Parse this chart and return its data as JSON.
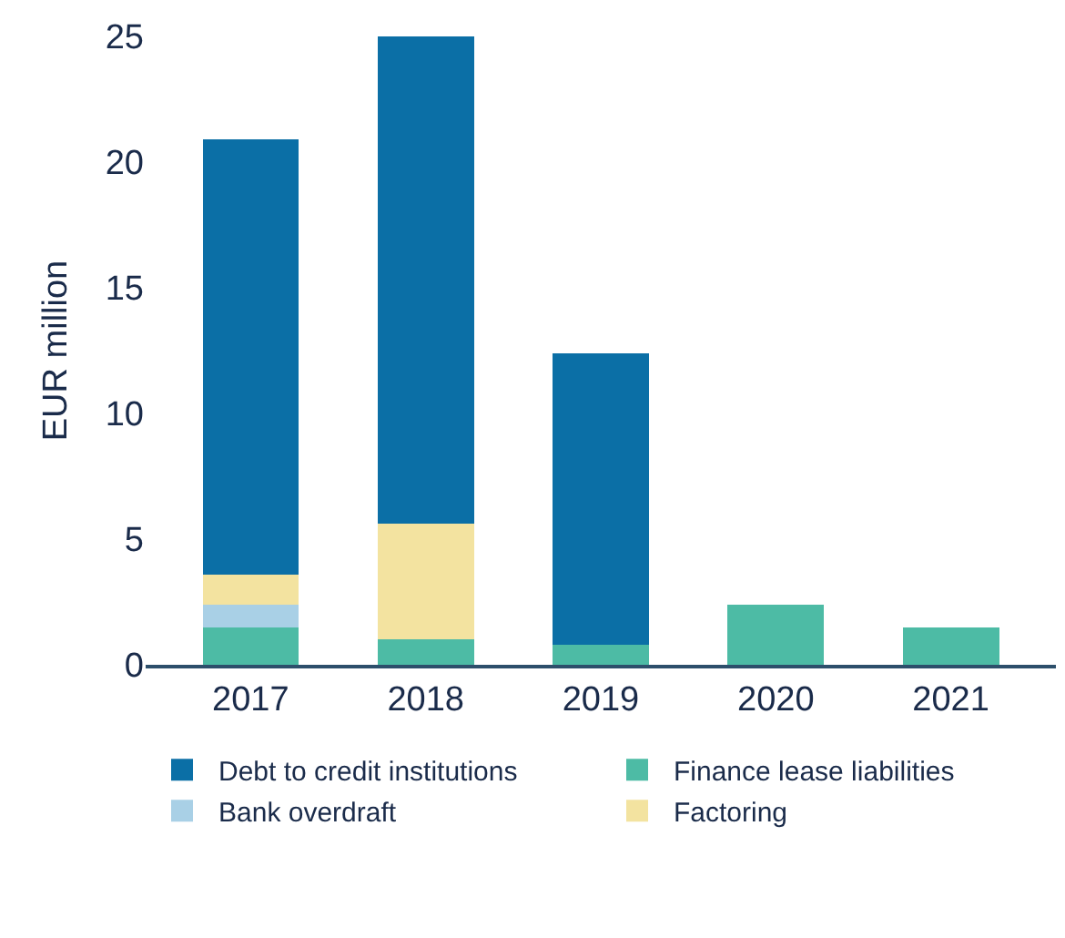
{
  "chart_data": {
    "type": "bar",
    "stacked": true,
    "ylabel": "EUR million",
    "categories": [
      "2017",
      "2018",
      "2019",
      "2020",
      "2021"
    ],
    "ylim": [
      0,
      25
    ],
    "yticks": [
      0,
      5,
      10,
      15,
      20,
      25
    ],
    "legend": "bottom",
    "series": [
      {
        "name": "Finance lease liabilities",
        "color": "#4dbba5",
        "values": [
          1.5,
          1.0,
          0.8,
          2.4,
          1.5
        ]
      },
      {
        "name": "Bank overdraft",
        "color": "#a9d0e6",
        "values": [
          0.9,
          null,
          null,
          null,
          null
        ]
      },
      {
        "name": "Factoring",
        "color": "#f3e3a0",
        "values": [
          1.2,
          4.6,
          null,
          null,
          null
        ]
      },
      {
        "name": "Debt to credit institutions",
        "color": "#0b6fa6",
        "values": [
          17.3,
          19.4,
          11.6,
          null,
          null
        ]
      }
    ]
  }
}
